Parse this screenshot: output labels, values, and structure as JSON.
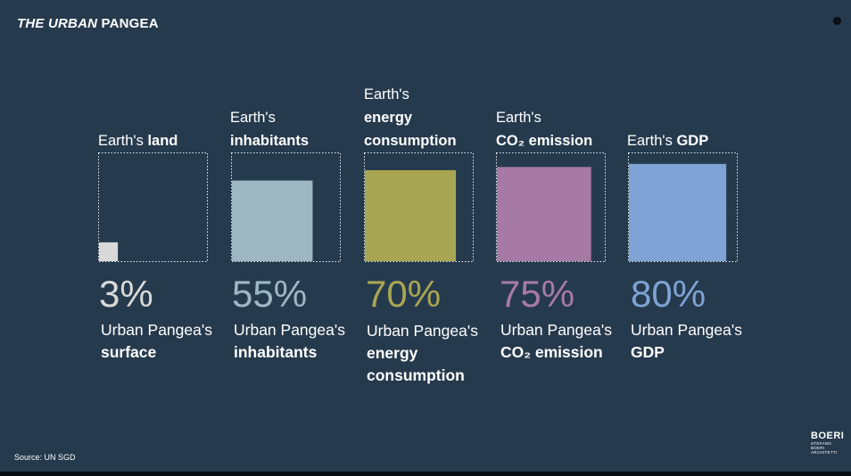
{
  "header": {
    "title_italic": "THE URBAN",
    "title_bold": "PANGEA"
  },
  "footer": {
    "source": "Source: UN SGD"
  },
  "logo": {
    "name": "BOERI",
    "line1": "STEFANO",
    "line2": "BOERI",
    "line3": "ARCHITETTI"
  },
  "colors": {
    "background": "#263a4d",
    "land": "#d9d9d9",
    "inhabitants": "#9fb7c3",
    "energy": "#a9a653",
    "co2": "#a77aa6",
    "gdp": "#7ea3d4"
  },
  "chart_data": {
    "type": "bar",
    "unit": "%",
    "categories": [
      "land",
      "inhabitants",
      "energy consumption",
      "CO2 emission",
      "GDP"
    ],
    "values": [
      3,
      55,
      70,
      75,
      80
    ],
    "ylim": [
      0,
      100
    ],
    "columns": [
      {
        "top_label_light": "Earth's",
        "top_label_bold": "land",
        "value": 3,
        "value_label": "3%",
        "desc_light": "Urban Pangea's",
        "desc_bold": "surface",
        "desc_bold2": "",
        "color": "#d9d9d9"
      },
      {
        "top_label_light": "Earth's",
        "top_label_bold": "inhabitants",
        "value": 55,
        "value_label": "55%",
        "desc_light": "Urban Pangea's",
        "desc_bold": "inhabitants",
        "desc_bold2": "",
        "color": "#9fb7c3"
      },
      {
        "top_label_light": "Earth's",
        "top_label_bold": "energy",
        "top_label_bold2": "consumption",
        "value": 70,
        "value_label": "70%",
        "desc_light": "Urban Pangea's",
        "desc_bold": "energy",
        "desc_bold2": "consumption",
        "color": "#a9a653"
      },
      {
        "top_label_light": "Earth's",
        "top_label_bold": "CO₂ emission",
        "value": 75,
        "value_label": "75%",
        "desc_light": "Urban Pangea's",
        "desc_bold": "CO₂ emission",
        "desc_bold2": "",
        "color": "#a77aa6"
      },
      {
        "top_label_light": "Earth's",
        "top_label_bold": "GDP",
        "value": 80,
        "value_label": "80%",
        "desc_light": "Urban Pangea's",
        "desc_bold": "GDP",
        "desc_bold2": "",
        "color": "#7ea3d4"
      }
    ]
  }
}
